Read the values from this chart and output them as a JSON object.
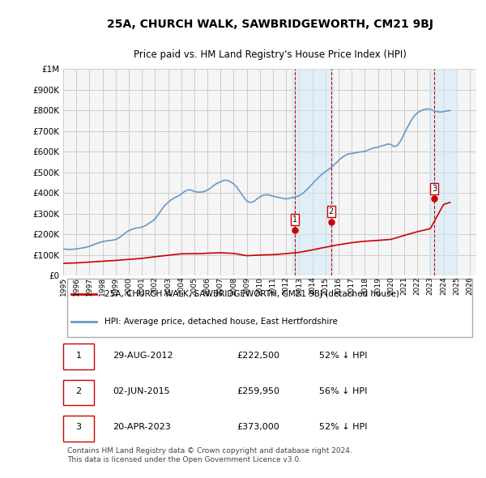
{
  "title": "25A, CHURCH WALK, SAWBRIDGEWORTH, CM21 9BJ",
  "subtitle": "Price paid vs. HM Land Registry's House Price Index (HPI)",
  "ylabel_values": [
    "£0",
    "£100K",
    "£200K",
    "£300K",
    "£400K",
    "£500K",
    "£600K",
    "£700K",
    "£800K",
    "£900K",
    "£1M"
  ],
  "ylim": [
    0,
    1000000
  ],
  "yticks": [
    0,
    100000,
    200000,
    300000,
    400000,
    500000,
    600000,
    700000,
    800000,
    900000,
    1000000
  ],
  "xlim_start": 1995.5,
  "xlim_end": 2026.5,
  "grid_color": "#cccccc",
  "background_color": "#ffffff",
  "plot_background": "#f5f5f5",
  "hpi_color": "#6699cc",
  "price_color": "#cc0000",
  "transaction_color": "#cc0000",
  "sale_label_bg": "#lightblue",
  "transactions": [
    {
      "date_num": 2012.66,
      "price": 222500,
      "label": "1"
    },
    {
      "date_num": 2015.42,
      "price": 259950,
      "label": "2"
    },
    {
      "date_num": 2023.31,
      "price": 373000,
      "label": "3"
    }
  ],
  "table_rows": [
    {
      "num": "1",
      "date": "29-AUG-2012",
      "price": "£222,500",
      "hpi": "52% ↓ HPI"
    },
    {
      "num": "2",
      "date": "02-JUN-2015",
      "price": "£259,950",
      "hpi": "56% ↓ HPI"
    },
    {
      "num": "3",
      "date": "20-APR-2023",
      "price": "£373,000",
      "hpi": "52% ↓ HPI"
    }
  ],
  "legend_entries": [
    {
      "label": "25A, CHURCH WALK, SAWBRIDGEWORTH, CM21 9BJ (detached house)",
      "color": "#cc0000"
    },
    {
      "label": "HPI: Average price, detached house, East Hertfordshire",
      "color": "#6699cc"
    }
  ],
  "footer": "Contains HM Land Registry data © Crown copyright and database right 2024.\nThis data is licensed under the Open Government Licence v3.0.",
  "hpi_data": {
    "years": [
      1995,
      1995.25,
      1995.5,
      1995.75,
      1996,
      1996.25,
      1996.5,
      1996.75,
      1997,
      1997.25,
      1997.5,
      1997.75,
      1998,
      1998.25,
      1998.5,
      1998.75,
      1999,
      1999.25,
      1999.5,
      1999.75,
      2000,
      2000.25,
      2000.5,
      2000.75,
      2001,
      2001.25,
      2001.5,
      2001.75,
      2002,
      2002.25,
      2002.5,
      2002.75,
      2003,
      2003.25,
      2003.5,
      2003.75,
      2004,
      2004.25,
      2004.5,
      2004.75,
      2005,
      2005.25,
      2005.5,
      2005.75,
      2006,
      2006.25,
      2006.5,
      2006.75,
      2007,
      2007.25,
      2007.5,
      2007.75,
      2008,
      2008.25,
      2008.5,
      2008.75,
      2009,
      2009.25,
      2009.5,
      2009.75,
      2010,
      2010.25,
      2010.5,
      2010.75,
      2011,
      2011.25,
      2011.5,
      2011.75,
      2012,
      2012.25,
      2012.5,
      2012.75,
      2013,
      2013.25,
      2013.5,
      2013.75,
      2014,
      2014.25,
      2014.5,
      2014.75,
      2015,
      2015.25,
      2015.5,
      2015.75,
      2016,
      2016.25,
      2016.5,
      2016.75,
      2017,
      2017.25,
      2017.5,
      2017.75,
      2018,
      2018.25,
      2018.5,
      2018.75,
      2019,
      2019.25,
      2019.5,
      2019.75,
      2020,
      2020.25,
      2020.5,
      2020.75,
      2021,
      2021.25,
      2021.5,
      2021.75,
      2022,
      2022.25,
      2022.5,
      2022.75,
      2023,
      2023.25,
      2023.5,
      2023.75,
      2024,
      2024.25,
      2024.5
    ],
    "values": [
      130000,
      128000,
      127000,
      128000,
      130000,
      132000,
      135000,
      138000,
      142000,
      148000,
      155000,
      160000,
      165000,
      168000,
      170000,
      172000,
      175000,
      183000,
      195000,
      208000,
      218000,
      225000,
      230000,
      232000,
      235000,
      242000,
      252000,
      262000,
      275000,
      295000,
      320000,
      340000,
      355000,
      368000,
      378000,
      385000,
      395000,
      408000,
      415000,
      415000,
      408000,
      405000,
      405000,
      408000,
      415000,
      425000,
      438000,
      448000,
      455000,
      462000,
      462000,
      455000,
      445000,
      428000,
      405000,
      382000,
      362000,
      355000,
      358000,
      370000,
      382000,
      390000,
      392000,
      390000,
      385000,
      382000,
      378000,
      375000,
      372000,
      375000,
      378000,
      382000,
      388000,
      398000,
      412000,
      428000,
      445000,
      462000,
      478000,
      492000,
      505000,
      515000,
      528000,
      542000,
      558000,
      572000,
      582000,
      590000,
      592000,
      595000,
      598000,
      600000,
      602000,
      608000,
      615000,
      620000,
      622000,
      628000,
      632000,
      638000,
      635000,
      625000,
      632000,
      655000,
      688000,
      718000,
      748000,
      772000,
      788000,
      798000,
      805000,
      808000,
      805000,
      800000,
      795000,
      792000,
      795000,
      798000,
      800000
    ]
  },
  "price_line_data": {
    "years": [
      1995,
      1995.5,
      1996,
      1996.5,
      1997,
      1997.5,
      1998,
      1998.5,
      1999,
      1999.5,
      2000,
      2000.5,
      2001,
      2001.5,
      2002,
      2002.5,
      2003,
      2003.5,
      2004,
      2004.5,
      2005,
      2005.5,
      2006,
      2006.5,
      2007,
      2007.5,
      2008,
      2008.5,
      2009,
      2009.5,
      2010,
      2010.5,
      2011,
      2011.5,
      2012,
      2012.25,
      2012.5,
      2012.66,
      2012.75,
      2013,
      2013.5,
      2014,
      2014.5,
      2015,
      2015.25,
      2015.42,
      2015.5,
      2015.75,
      2016,
      2016.5,
      2017,
      2017.5,
      2018,
      2018.5,
      2019,
      2019.5,
      2020,
      2020.5,
      2021,
      2021.5,
      2022,
      2022.5,
      2023,
      2023.25,
      2023.31,
      2023.5,
      2023.75,
      2024,
      2024.25
    ],
    "values": [
      65000,
      64000,
      63000,
      64000,
      66000,
      69000,
      71000,
      72000,
      73000,
      77000,
      80000,
      82000,
      84000,
      87000,
      90000,
      97000,
      102000,
      106000,
      110000,
      110000,
      108000,
      107000,
      108000,
      110000,
      112000,
      112000,
      110000,
      104000,
      98000,
      96000,
      100000,
      102000,
      103000,
      103000,
      105000,
      107000,
      108000,
      222500,
      109000,
      112000,
      118000,
      125000,
      132000,
      140000,
      142000,
      259950,
      144000,
      148000,
      152000,
      158000,
      162000,
      165000,
      168000,
      170000,
      172000,
      175000,
      178000,
      185000,
      195000,
      205000,
      215000,
      222000,
      230000,
      235000,
      373000,
      238000,
      245000,
      350000,
      355000
    ]
  }
}
